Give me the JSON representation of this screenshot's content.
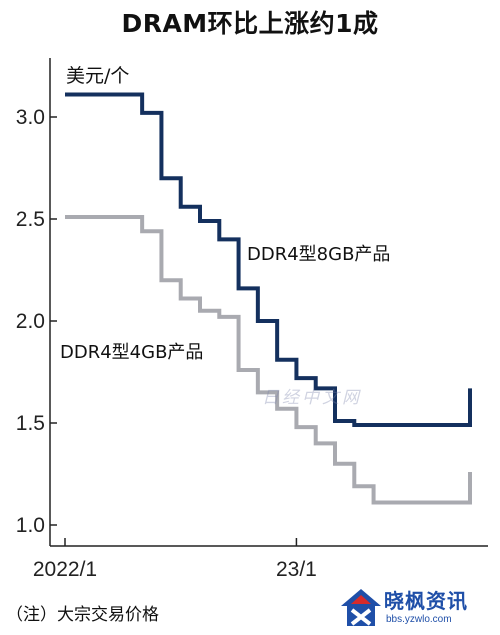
{
  "chart_data": {
    "type": "line",
    "title": "DRAM环比上涨约1成",
    "ylabel": "美元/个",
    "xlabel": "",
    "ylim": [
      1.0,
      3.2
    ],
    "yticks": [
      "3.0",
      "2.5",
      "2.0",
      "1.5",
      "1.0"
    ],
    "xticks": [
      "2022/1",
      "23/1"
    ],
    "grid": false,
    "series": [
      {
        "name": "DDR4型8GB产品",
        "color": "#14305e",
        "x": [
          "2022-01",
          "2022-02",
          "2022-03",
          "2022-04",
          "2022-05",
          "2022-06",
          "2022-07",
          "2022-08",
          "2022-09",
          "2022-10",
          "2022-11",
          "2022-12",
          "2023-01",
          "2023-02",
          "2023-03",
          "2023-04",
          "2023-05",
          "2023-06",
          "2023-07",
          "2023-08",
          "2023-09",
          "2023-10"
        ],
        "values": [
          3.11,
          3.11,
          3.11,
          3.11,
          3.02,
          2.7,
          2.56,
          2.49,
          2.4,
          2.16,
          2.0,
          1.81,
          1.72,
          1.67,
          1.51,
          1.49,
          1.49,
          1.49,
          1.49,
          1.49,
          1.49,
          1.67
        ]
      },
      {
        "name": "DDR4型4GB产品",
        "color": "#a9aab0",
        "x": [
          "2022-01",
          "2022-02",
          "2022-03",
          "2022-04",
          "2022-05",
          "2022-06",
          "2022-07",
          "2022-08",
          "2022-09",
          "2022-10",
          "2022-11",
          "2022-12",
          "2023-01",
          "2023-02",
          "2023-03",
          "2023-04",
          "2023-05",
          "2023-06",
          "2023-07",
          "2023-08",
          "2023-09",
          "2023-10"
        ],
        "values": [
          2.51,
          2.51,
          2.51,
          2.51,
          2.44,
          2.2,
          2.11,
          2.05,
          2.02,
          1.76,
          1.65,
          1.57,
          1.48,
          1.4,
          1.3,
          1.19,
          1.11,
          1.11,
          1.11,
          1.11,
          1.11,
          1.26
        ]
      }
    ]
  },
  "note": "（注）大宗交易价格",
  "watermark": "日经中文网",
  "brand": {
    "name": "晓枫资讯",
    "url": "bbs.yzwlo.com"
  }
}
